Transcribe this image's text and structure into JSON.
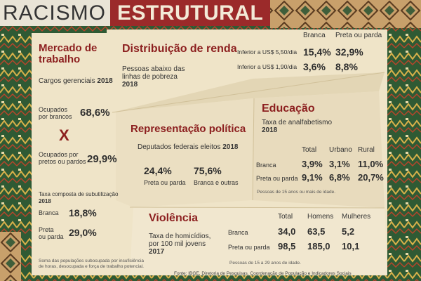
{
  "title": {
    "part1": "RACISMO",
    "part2": "ESTRUTURAL"
  },
  "mercado": {
    "title_l1": "Mercado de",
    "title_l2": "trabalho",
    "cargos": "Cargos gerenciais",
    "cargos_year": "2018",
    "ocup_brancos_l1": "Ocupados",
    "ocup_brancos_l2": "por brancos",
    "ocup_brancos_val": "68,6%",
    "x": "X",
    "ocup_pretos_l1": "Ocupados por",
    "ocup_pretos_l2": "pretos ou pardos",
    "ocup_pretos_val": "29,9%",
    "taxa_l1": "Taxa composta de subutilização",
    "taxa_year": "2018",
    "branca_label": "Branca",
    "branca_val": "18,8%",
    "preta_l1": "Preta",
    "preta_l2": "ou parda",
    "preta_val": "29,0%",
    "note_l1": "Soma das populações subocupada por insuficiência",
    "note_l2": "de horas, desocupada e força de trabalho potencial."
  },
  "renda": {
    "title": "Distribuição de renda",
    "desc_l1": "Pessoas abaixo das",
    "desc_l2": "linhas de pobreza",
    "year": "2018",
    "col1": "Branca",
    "col2": "Preta ou parda",
    "rows": [
      {
        "label": "Inferior a US$ 5,50/dia",
        "v1": "15,4%",
        "v2": "32,9%"
      },
      {
        "label": "Inferior a US$ 1,90/dia",
        "v1": "3,6%",
        "v2": "8,8%"
      }
    ]
  },
  "educacao": {
    "title": "Educação",
    "desc": "Taxa de analfabetismo",
    "year": "2018",
    "cols": [
      "Total",
      "Urbano",
      "Rural"
    ],
    "rows": [
      {
        "label": "Branca",
        "vals": [
          "3,9%",
          "3,1%",
          "11,0%"
        ]
      },
      {
        "label": "Preta ou parda",
        "vals": [
          "9,1%",
          "6,8%",
          "20,7%"
        ]
      }
    ],
    "note": "Pessoas de 15 anos ou mais de idade."
  },
  "representacao": {
    "title": "Representação política",
    "desc": "Deputados federais eleitos",
    "year": "2018",
    "v1": "24,4%",
    "l1": "Preta ou parda",
    "v2": "75,6%",
    "l2": "Branca e outras"
  },
  "violencia": {
    "title": "Violência",
    "desc_l1": "Taxa de homicídios,",
    "desc_l2": "por 100 mil jovens",
    "year": "2017",
    "cols": [
      "Total",
      "Homens",
      "Mulheres"
    ],
    "rows": [
      {
        "label": "Branca",
        "vals": [
          "34,0",
          "63,5",
          "5,2"
        ]
      },
      {
        "label": "Preta ou parda",
        "vals": [
          "98,5",
          "185,0",
          "10,1"
        ]
      }
    ],
    "note": "Pessoas de 15 a 29 anos de idade."
  },
  "fonte": "Fonte: IBGE, Diretoria de Pesquisas, Coordenação de População e Indicadores Sociais"
}
